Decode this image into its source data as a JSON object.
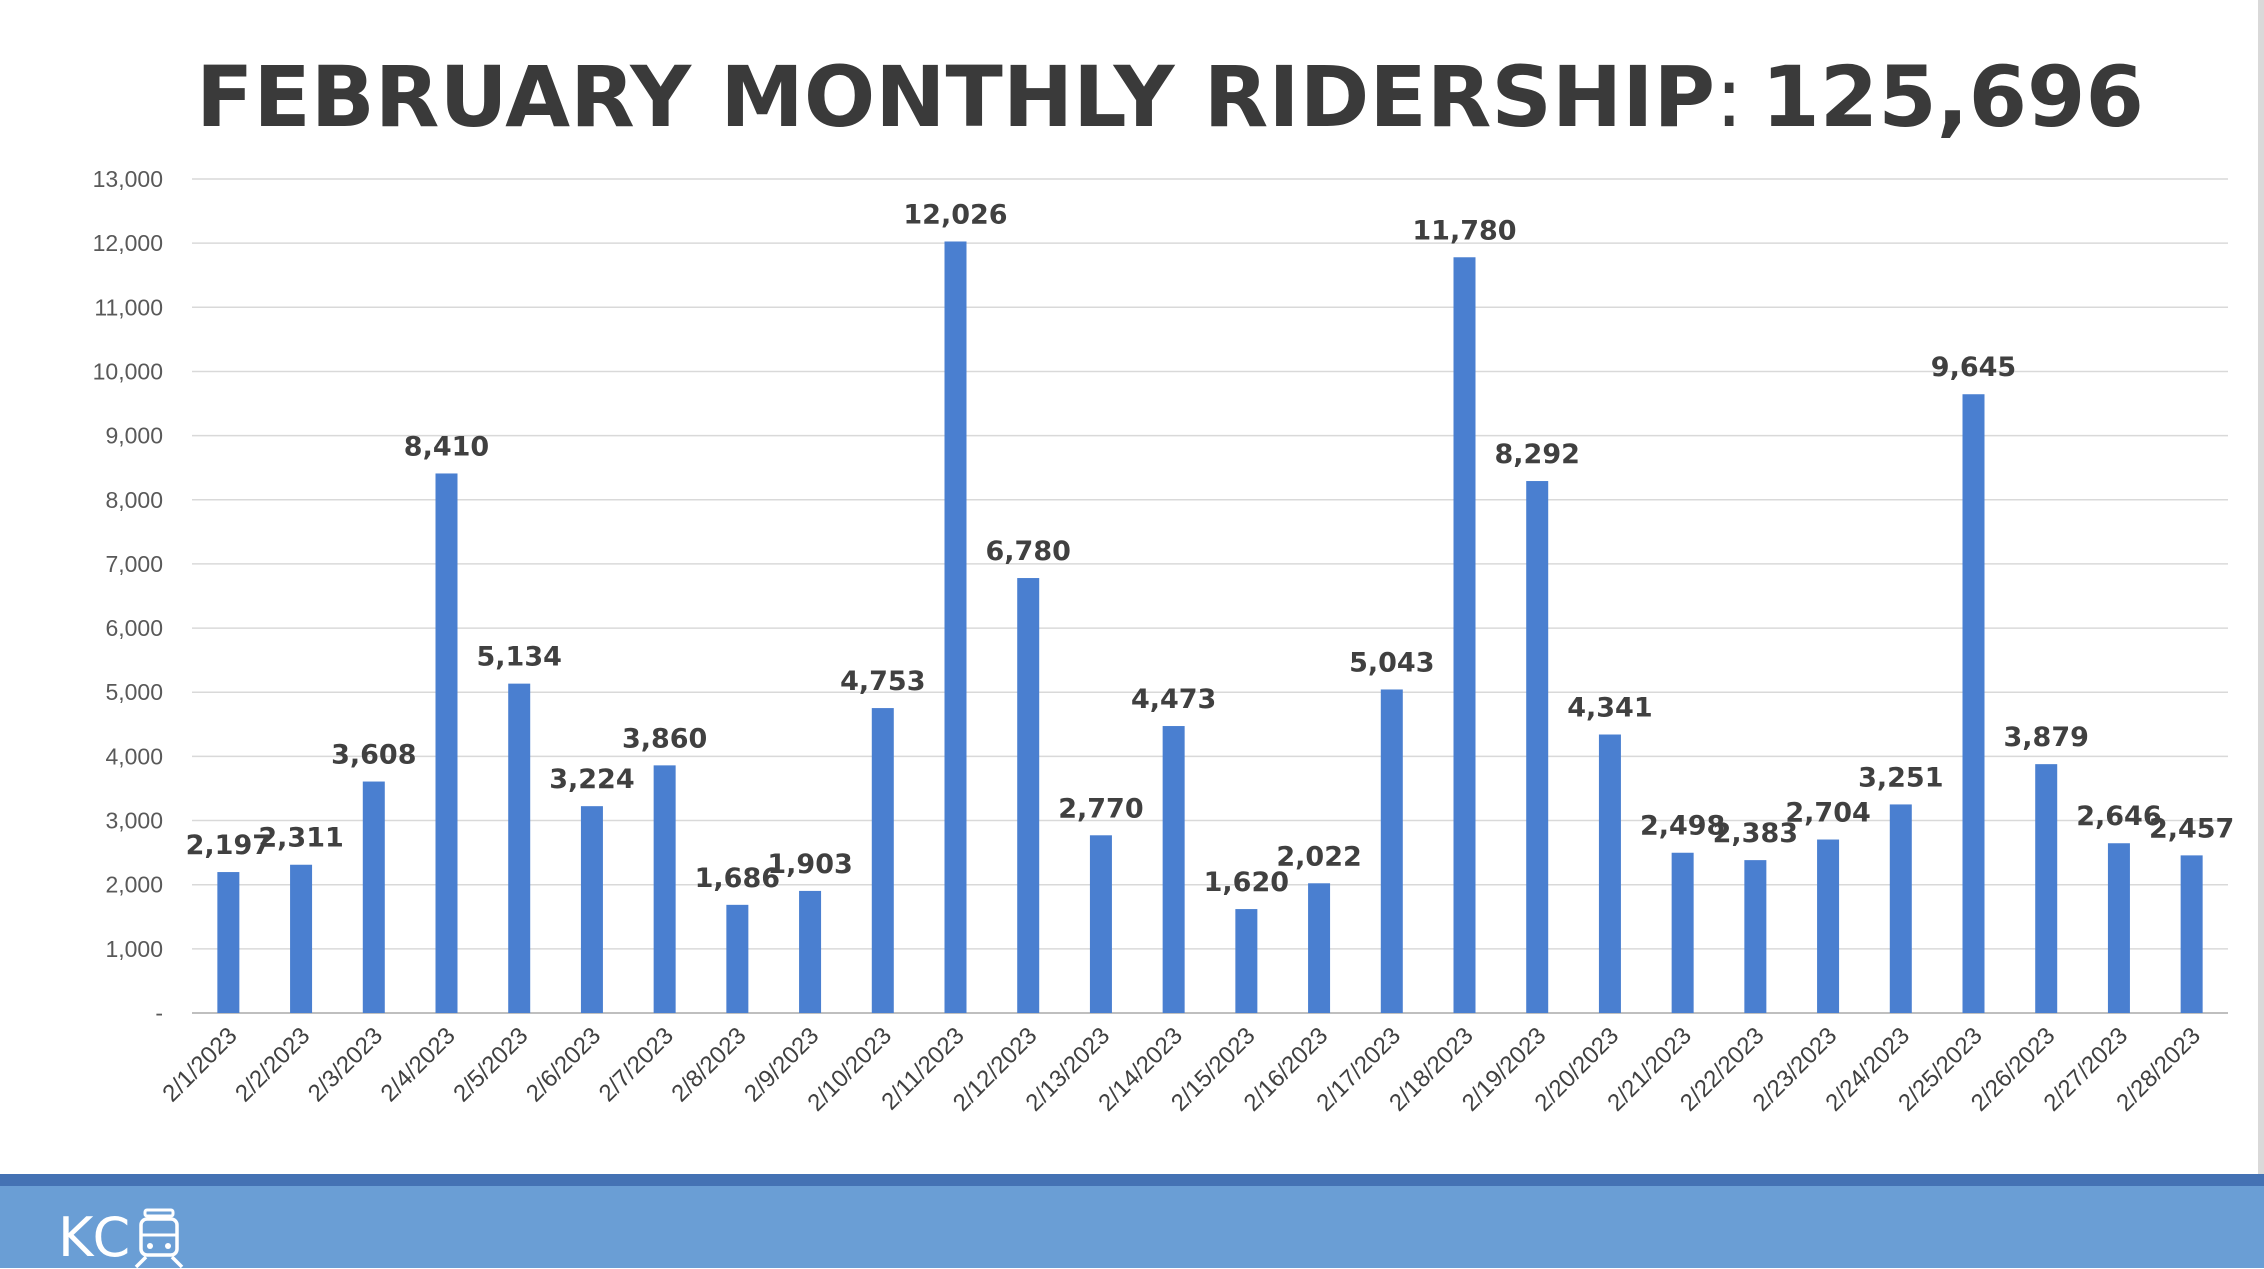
{
  "slide": {
    "title_main": "FEBRUARY MONTHLY RIDERSHIP",
    "title_sep": ":",
    "title_total": "125,696",
    "logo_text": "KC",
    "logo_icon": "streetcar-icon"
  },
  "colors": {
    "bar": "#4a7fd0",
    "gridline": "#d9d9d9",
    "footer": "#6a9ed5",
    "footer_stripe": "#4472b4"
  },
  "chart_data": {
    "type": "bar",
    "title": "FEBRUARY MONTHLY RIDERSHIP: 125,696",
    "categories": [
      "2/1/2023",
      "2/2/2023",
      "2/3/2023",
      "2/4/2023",
      "2/5/2023",
      "2/6/2023",
      "2/7/2023",
      "2/8/2023",
      "2/9/2023",
      "2/10/2023",
      "2/11/2023",
      "2/12/2023",
      "2/13/2023",
      "2/14/2023",
      "2/15/2023",
      "2/16/2023",
      "2/17/2023",
      "2/18/2023",
      "2/19/2023",
      "2/20/2023",
      "2/21/2023",
      "2/22/2023",
      "2/23/2023",
      "2/24/2023",
      "2/25/2023",
      "2/26/2023",
      "2/27/2023",
      "2/28/2023"
    ],
    "values": [
      2197,
      2311,
      3608,
      8410,
      5134,
      3224,
      3860,
      1686,
      1903,
      4753,
      12026,
      6780,
      2770,
      4473,
      1620,
      2022,
      5043,
      11780,
      8292,
      4341,
      2498,
      2383,
      2704,
      3251,
      9645,
      3879,
      2646,
      2457
    ],
    "data_labels": [
      "2,197",
      "2,311",
      "3,608",
      "8,410",
      "5,134",
      "3,224",
      "3,860",
      "1,686",
      "1,903",
      "4,753",
      "12,026",
      "6,780",
      "2,770",
      "4,473",
      "1,620",
      "2,022",
      "5,043",
      "11,780",
      "8,292",
      "4,341",
      "2,498",
      "2,383",
      "2,704",
      "3,251",
      "9,645",
      "3,879",
      "2,646",
      "2,457"
    ],
    "ylim": [
      0,
      13000
    ],
    "yticks": [
      0,
      1000,
      2000,
      3000,
      4000,
      5000,
      6000,
      7000,
      8000,
      9000,
      10000,
      11000,
      12000,
      13000
    ],
    "ytick_labels": [
      "-",
      "1,000",
      "2,000",
      "3,000",
      "4,000",
      "5,000",
      "6,000",
      "7,000",
      "8,000",
      "9,000",
      "10,000",
      "11,000",
      "12,000",
      "13,000"
    ],
    "grid": true,
    "legend": "none",
    "xlabel": "",
    "ylabel": ""
  }
}
